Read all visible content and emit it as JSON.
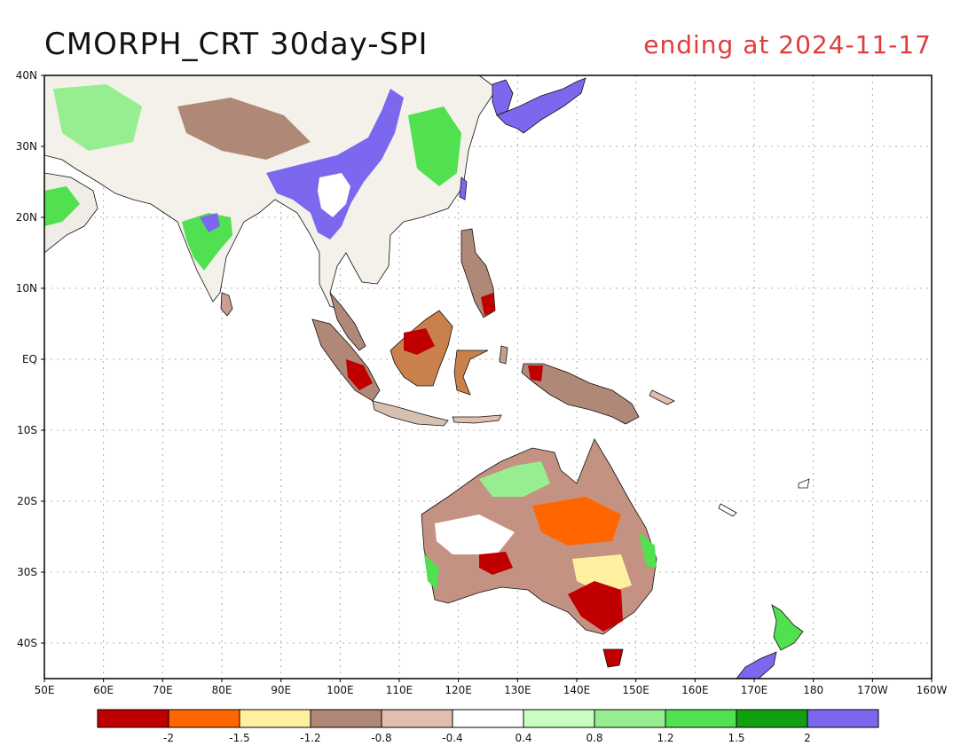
{
  "title": "CMORPH_CRT 30day-SPI",
  "subtitle": "ending at 2024-11-17",
  "lat_labels": [
    "40N",
    "30N",
    "20N",
    "10N",
    "EQ",
    "10S",
    "20S",
    "30S",
    "40S"
  ],
  "lon_labels": [
    "50E",
    "60E",
    "70E",
    "80E",
    "90E",
    "100E",
    "110E",
    "120E",
    "130E",
    "140E",
    "150E",
    "160E",
    "170E",
    "180",
    "170W",
    "160W"
  ],
  "legend": {
    "colors": [
      "#c00000",
      "#ff6600",
      "#fff0a0",
      "#b08878",
      "#e2beb0",
      "#ffffff",
      "#c8ffc0",
      "#96ee90",
      "#50e050",
      "#10a010",
      "#7b68ee"
    ],
    "labels": [
      "-2",
      "-1.5",
      "-1.2",
      "-0.8",
      "-0.4",
      "0.4",
      "0.8",
      "1.2",
      "1.5",
      "2"
    ]
  }
}
